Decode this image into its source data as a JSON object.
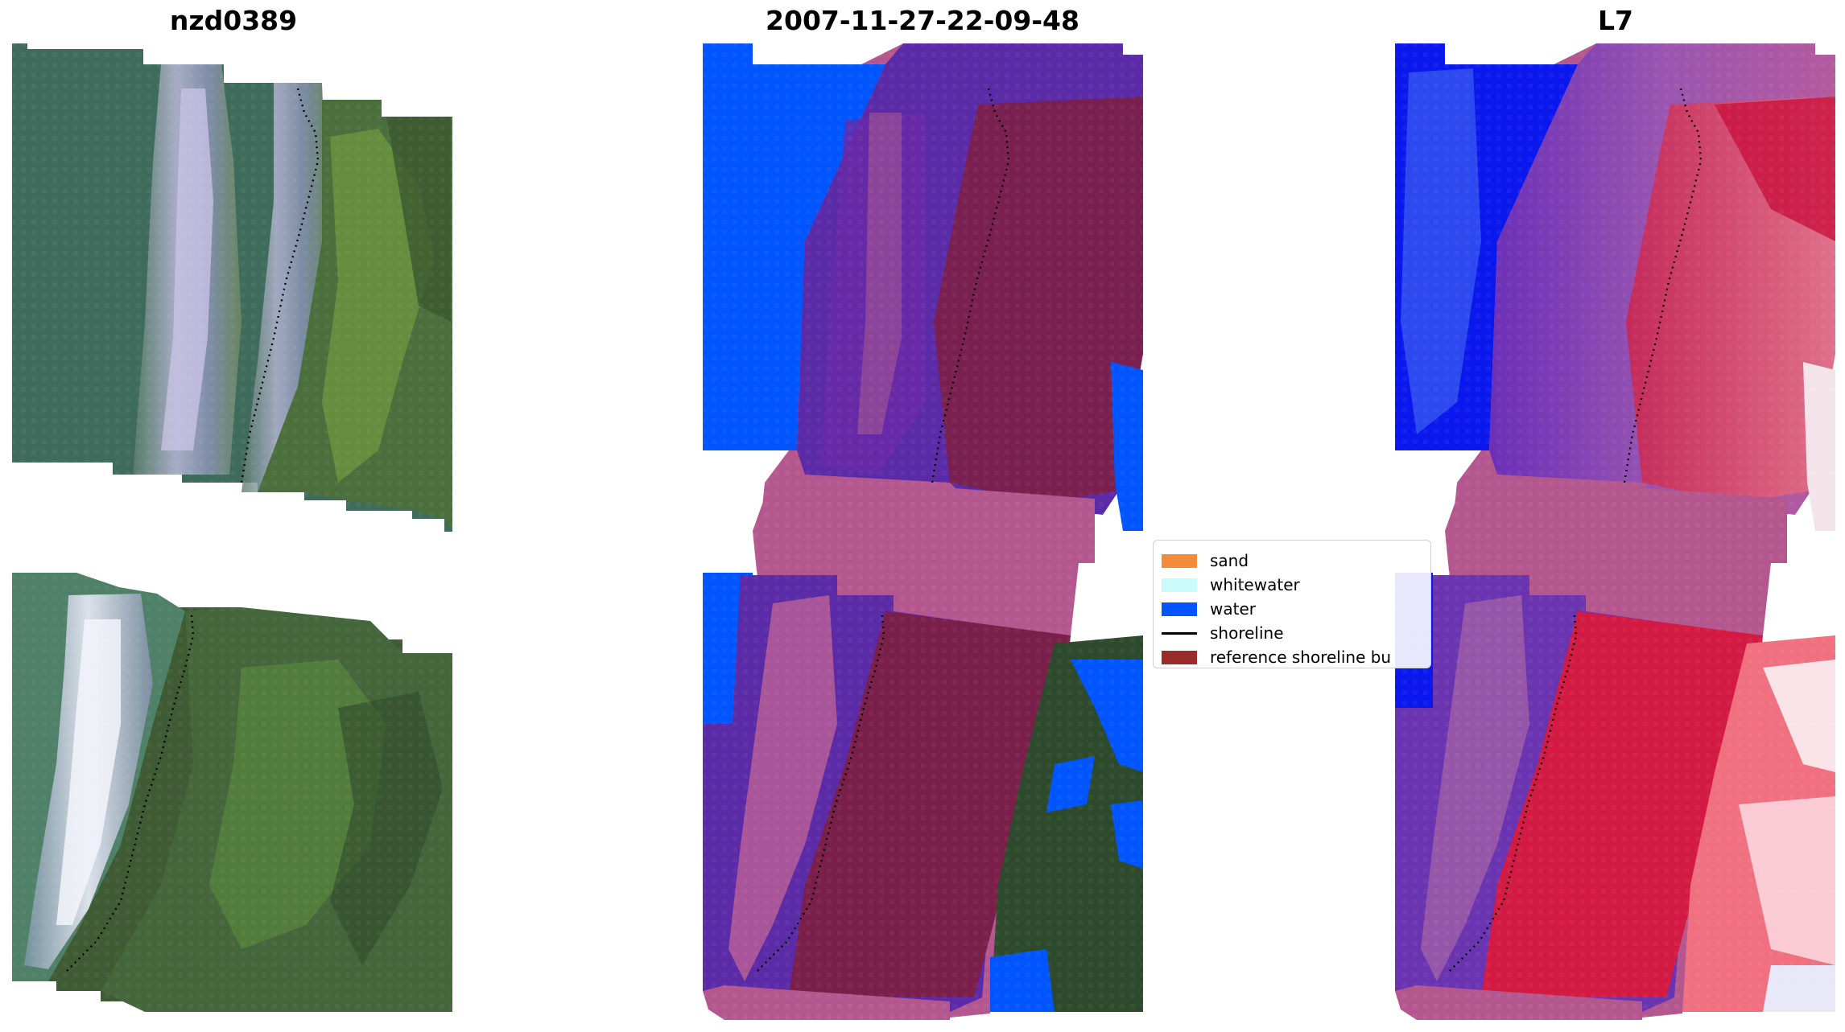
{
  "titles": {
    "site": "nzd0389",
    "date": "2007-11-27-22-09-48",
    "satellite": "L7"
  },
  "legend": {
    "items": [
      {
        "label": "sand",
        "color": "#f28c3a",
        "kind": "patch"
      },
      {
        "label": "whitewater",
        "color": "#c9fbfb",
        "kind": "patch"
      },
      {
        "label": "water",
        "color": "#0055ff",
        "kind": "patch"
      },
      {
        "label": "shoreline",
        "color": "#000000",
        "kind": "line"
      },
      {
        "label": "reference shoreline bu",
        "color": "#9b2a2a",
        "kind": "patch"
      }
    ]
  },
  "colors": {
    "sea_rgb": "#3e6e5e",
    "vegetation": "#3f5a35",
    "beach_pale": "#9aa7b8",
    "water_class": "#0055ff",
    "buffer_pink": "#b5578f",
    "purple": "#5a2aa0",
    "maroon": "#7a1f4a",
    "ndwi_blue": "#0a14f0",
    "ndwi_red": "#d41a3e"
  }
}
